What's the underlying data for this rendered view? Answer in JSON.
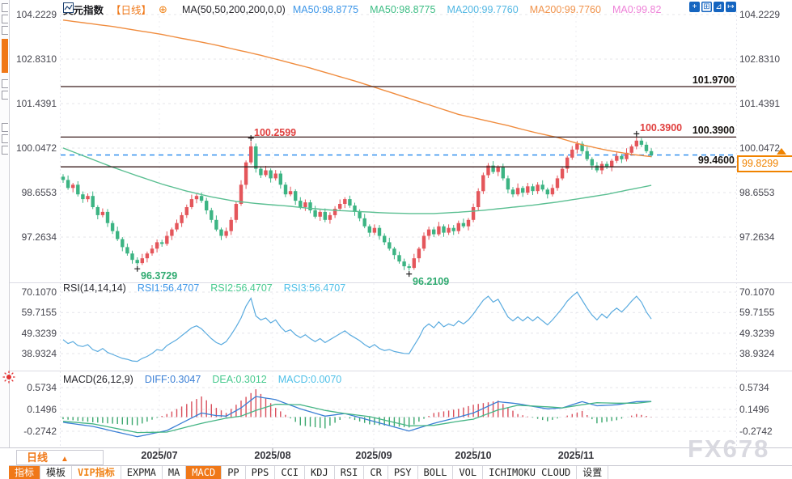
{
  "header": {
    "symbol": "美元指数",
    "period_tag": "【日线】",
    "ma_settings": "MA(50,50,200,200,0,0)",
    "ma_values": [
      {
        "label": "MA50:98.8775",
        "color": "#3d96e8"
      },
      {
        "label": "MA50:98.8775",
        "color": "#3dbd84"
      },
      {
        "label": "MA200:99.7760",
        "color": "#52b7e3"
      },
      {
        "label": "MA200:99.7760",
        "color": "#f0924a"
      },
      {
        "label": "MA0:99.82",
        "color": "#ee82d8"
      }
    ],
    "toolbar_icons": [
      {
        "name": "crosshair-tool-icon",
        "glyph": "+",
        "filled": true
      },
      {
        "name": "axis-range-icon",
        "glyph": "⊞",
        "filled": false
      },
      {
        "name": "chart-scale-icon",
        "glyph": "⊿",
        "filled": true
      },
      {
        "name": "pan-right-icon",
        "glyph": "↦",
        "filled": true
      }
    ]
  },
  "main_chart": {
    "y_axis": {
      "labels": [
        "104.2229",
        "102.8310",
        "101.4391",
        "100.0472",
        "98.6553",
        "97.2634"
      ],
      "values": [
        104.2229,
        102.831,
        101.4391,
        100.0472,
        98.6553,
        97.2634
      ]
    },
    "levels": [
      {
        "label": "101.9700",
        "value": 101.97
      },
      {
        "label": "100.3900",
        "value": 100.39
      },
      {
        "label": "99.4600",
        "value": 99.46
      }
    ],
    "current_price": {
      "label": "99.8299",
      "value": 99.8299
    },
    "annotations": [
      {
        "candle": 38,
        "side": "high",
        "text": "100.2599"
      },
      {
        "candle": 15,
        "side": "low",
        "text": "96.3729"
      },
      {
        "candle": 70,
        "side": "low",
        "text": "96.2109"
      },
      {
        "candle": 116,
        "side": "high",
        "text": "100.3900"
      }
    ]
  },
  "rsi": {
    "title": "RSI(14,14,14)",
    "values": [
      {
        "label": "RSI1:56.4707",
        "color": "#3d96e8"
      },
      {
        "label": "RSI2:56.4707",
        "color": "#45c98d"
      },
      {
        "label": "RSI3:56.4707",
        "color": "#4fc0e8"
      }
    ],
    "axis_labels": [
      "70.1070",
      "59.7155",
      "49.3239",
      "38.9324"
    ],
    "axis_values": [
      70.107,
      59.7155,
      49.3239,
      38.9324
    ]
  },
  "macd": {
    "title": "MACD(26,12,9)",
    "values": [
      {
        "label": "DIFF:0.3047",
        "color": "#3a7fd5"
      },
      {
        "label": "DEA:0.3012",
        "color": "#45c98d"
      },
      {
        "label": "MACD:0.0070",
        "color": "#4fc0e8"
      }
    ],
    "axis_labels": [
      "0.5734",
      "0.1496",
      "-0.2742"
    ],
    "axis_values": [
      0.5734,
      0.1496,
      -0.2742
    ]
  },
  "x_axis": {
    "months": [
      "2025/07",
      "2025/08",
      "2025/09",
      "2025/10",
      "2025/11"
    ],
    "positions": [
      197,
      337,
      462,
      585,
      712
    ]
  },
  "period_selector": {
    "label": "日线",
    "caret": "▲"
  },
  "tabs": [
    {
      "label": "指标",
      "active": true
    },
    {
      "label": "模板"
    },
    {
      "label": "VIP指标",
      "vip": true
    },
    {
      "label": "EXPMA"
    },
    {
      "label": "MA"
    },
    {
      "label": "MACD",
      "active": true
    },
    {
      "label": "PP"
    },
    {
      "label": "PPS"
    },
    {
      "label": "CCI"
    },
    {
      "label": "KDJ"
    },
    {
      "label": "RSI"
    },
    {
      "label": "CR"
    },
    {
      "label": "PSY"
    },
    {
      "label": "BOLL"
    },
    {
      "label": "VOL"
    },
    {
      "label": "ICHIMOKU CLOUD"
    },
    {
      "label": "设置"
    }
  ],
  "watermark": "FX678",
  "colors": {
    "up": "#e4565b",
    "down": "#3cb483",
    "ma50": "#5bbf92",
    "ma200": "#f08c3e",
    "level_line": "#3a1c1c",
    "price_line": "#2288ee",
    "price_tag": "#f08300",
    "rsi_line": "#5aabdf",
    "diff_line": "#3a7fd5",
    "dea_line": "#45b585",
    "hist_up": "#d94f5c",
    "hist_down": "#3aa76d",
    "annotation_up": "#e0403f",
    "annotation_down": "#2faa70",
    "grid": "#e4e4ea",
    "accent": "#f07818"
  },
  "chart_data": {
    "type": "candlestick",
    "title": "美元指数 daily candlestick with MA50/MA200, RSI(14) and MACD(26,12,9) panes",
    "y_range_main": [
      97.2634,
      104.2229
    ],
    "y_range_rsi": [
      38.9324,
      70.107
    ],
    "y_range_macd": [
      -0.2742,
      0.5734
    ],
    "marked_high_1": 100.2599,
    "marked_low_1": 96.3729,
    "marked_low_2": 96.2109,
    "marked_high_2": 100.39,
    "last_close": 99.8299,
    "candles": [
      [
        99.15,
        99.23,
        98.96,
        99.05
      ],
      [
        99.05,
        99.19,
        98.74,
        98.8
      ],
      [
        98.8,
        98.96,
        98.67,
        98.9
      ],
      [
        98.9,
        99.01,
        98.53,
        98.6
      ],
      [
        98.6,
        98.69,
        98.33,
        98.45
      ],
      [
        98.45,
        98.63,
        98.36,
        98.55
      ],
      [
        98.55,
        98.69,
        98.14,
        98.2
      ],
      [
        98.2,
        98.26,
        97.82,
        97.95
      ],
      [
        97.95,
        98.16,
        97.88,
        98.05
      ],
      [
        98.05,
        98.14,
        97.58,
        97.7
      ],
      [
        97.7,
        97.78,
        97.36,
        97.45
      ],
      [
        97.45,
        97.59,
        97.14,
        97.2
      ],
      [
        97.2,
        97.26,
        96.82,
        96.95
      ],
      [
        96.95,
        97.06,
        96.68,
        96.75
      ],
      [
        96.75,
        96.84,
        96.43,
        96.55
      ],
      [
        96.55,
        96.63,
        96.373,
        96.45
      ],
      [
        96.45,
        96.74,
        96.39,
        96.6
      ],
      [
        96.6,
        96.81,
        96.47,
        96.75
      ],
      [
        96.75,
        97.01,
        96.68,
        96.9
      ],
      [
        96.9,
        97.19,
        96.78,
        97.1
      ],
      [
        97.1,
        97.18,
        96.96,
        97.05
      ],
      [
        97.05,
        97.44,
        96.99,
        97.3
      ],
      [
        97.3,
        97.56,
        97.17,
        97.5
      ],
      [
        97.5,
        97.81,
        97.43,
        97.7
      ],
      [
        97.7,
        98.04,
        97.58,
        97.95
      ],
      [
        97.95,
        98.28,
        97.86,
        98.2
      ],
      [
        98.2,
        98.59,
        98.14,
        98.45
      ],
      [
        98.45,
        98.61,
        98.32,
        98.55
      ],
      [
        98.55,
        98.66,
        98.33,
        98.4
      ],
      [
        98.4,
        98.49,
        97.98,
        98.1
      ],
      [
        98.1,
        98.18,
        97.71,
        97.8
      ],
      [
        97.8,
        97.94,
        97.44,
        97.5
      ],
      [
        97.5,
        97.56,
        97.17,
        97.3
      ],
      [
        97.3,
        97.56,
        97.23,
        97.45
      ],
      [
        97.45,
        97.89,
        97.33,
        97.8
      ],
      [
        97.8,
        98.38,
        97.71,
        98.3
      ],
      [
        98.3,
        99.04,
        98.24,
        98.9
      ],
      [
        98.9,
        99.66,
        98.77,
        99.6
      ],
      [
        99.6,
        100.2599,
        99.53,
        100.1
      ],
      [
        100.1,
        100.19,
        99.28,
        99.4
      ],
      [
        99.4,
        99.48,
        99.11,
        99.2
      ],
      [
        99.2,
        99.49,
        99.14,
        99.35
      ],
      [
        99.35,
        99.41,
        98.97,
        99.1
      ],
      [
        99.1,
        99.36,
        99.03,
        99.25
      ],
      [
        99.25,
        99.34,
        98.78,
        98.9
      ],
      [
        98.9,
        98.98,
        98.51,
        98.6
      ],
      [
        98.6,
        98.84,
        98.54,
        98.7
      ],
      [
        98.7,
        98.76,
        98.27,
        98.4
      ],
      [
        98.4,
        98.51,
        98.13,
        98.2
      ],
      [
        98.2,
        98.44,
        98.08,
        98.35
      ],
      [
        98.35,
        98.43,
        98.01,
        98.1
      ],
      [
        98.1,
        98.24,
        97.84,
        97.9
      ],
      [
        97.9,
        98.11,
        97.77,
        98.05
      ],
      [
        98.05,
        98.16,
        97.73,
        97.8
      ],
      [
        97.8,
        98.04,
        97.68,
        97.95
      ],
      [
        97.95,
        98.23,
        97.86,
        98.15
      ],
      [
        98.15,
        98.44,
        98.09,
        98.3
      ],
      [
        98.3,
        98.51,
        98.17,
        98.45
      ],
      [
        98.45,
        98.56,
        98.18,
        98.25
      ],
      [
        98.25,
        98.34,
        97.93,
        98.05
      ],
      [
        98.05,
        98.13,
        97.76,
        97.85
      ],
      [
        97.85,
        97.99,
        97.54,
        97.6
      ],
      [
        97.6,
        97.66,
        97.27,
        97.4
      ],
      [
        97.4,
        97.66,
        97.33,
        97.55
      ],
      [
        97.55,
        97.64,
        97.18,
        97.3
      ],
      [
        97.3,
        97.38,
        97.01,
        97.1
      ],
      [
        97.1,
        97.24,
        96.84,
        96.9
      ],
      [
        96.9,
        96.96,
        96.57,
        96.7
      ],
      [
        96.7,
        96.81,
        96.43,
        96.5
      ],
      [
        96.5,
        96.59,
        96.23,
        96.35
      ],
      [
        96.35,
        96.43,
        96.2109,
        96.3
      ],
      [
        96.3,
        96.74,
        96.24,
        96.6
      ],
      [
        96.6,
        96.96,
        96.47,
        96.9
      ],
      [
        96.9,
        97.41,
        96.83,
        97.3
      ],
      [
        97.3,
        97.59,
        97.18,
        97.5
      ],
      [
        97.5,
        97.58,
        97.26,
        97.35
      ],
      [
        97.35,
        97.74,
        97.29,
        97.6
      ],
      [
        97.6,
        97.66,
        97.27,
        97.4
      ],
      [
        97.4,
        97.66,
        97.33,
        97.55
      ],
      [
        97.55,
        97.64,
        97.33,
        97.45
      ],
      [
        97.45,
        97.78,
        97.36,
        97.7
      ],
      [
        97.7,
        97.84,
        97.54,
        97.6
      ],
      [
        97.6,
        97.86,
        97.47,
        97.8
      ],
      [
        97.8,
        98.31,
        97.73,
        98.2
      ],
      [
        98.2,
        98.79,
        98.08,
        98.7
      ],
      [
        98.7,
        99.28,
        98.61,
        99.2
      ],
      [
        99.2,
        99.58,
        99.11,
        99.5
      ],
      [
        99.5,
        99.64,
        99.24,
        99.3
      ],
      [
        99.3,
        99.51,
        99.17,
        99.45
      ],
      [
        99.45,
        99.56,
        99.03,
        99.1
      ],
      [
        99.1,
        99.19,
        98.63,
        98.75
      ],
      [
        98.75,
        98.83,
        98.51,
        98.6
      ],
      [
        98.6,
        98.94,
        98.54,
        98.8
      ],
      [
        98.8,
        98.86,
        98.52,
        98.65
      ],
      [
        98.65,
        98.96,
        98.58,
        98.85
      ],
      [
        98.85,
        98.93,
        98.58,
        98.7
      ],
      [
        98.7,
        98.98,
        98.61,
        98.9
      ],
      [
        98.9,
        99.04,
        98.69,
        98.75
      ],
      [
        98.75,
        98.81,
        98.47,
        98.6
      ],
      [
        98.6,
        98.91,
        98.53,
        98.8
      ],
      [
        98.8,
        99.19,
        98.71,
        99.1
      ],
      [
        99.1,
        99.48,
        99.04,
        99.4
      ],
      [
        99.4,
        99.81,
        99.27,
        99.75
      ],
      [
        99.75,
        100.11,
        99.68,
        100.0
      ],
      [
        100.0,
        100.27,
        99.88,
        100.18
      ],
      [
        100.18,
        100.26,
        99.86,
        99.95
      ],
      [
        99.95,
        100.09,
        99.64,
        99.7
      ],
      [
        99.7,
        99.76,
        99.37,
        99.5
      ],
      [
        99.5,
        99.61,
        99.28,
        99.35
      ],
      [
        99.35,
        99.64,
        99.23,
        99.55
      ],
      [
        99.55,
        99.63,
        99.39,
        99.45
      ],
      [
        99.45,
        99.71,
        99.32,
        99.65
      ],
      [
        99.65,
        99.91,
        99.58,
        99.8
      ],
      [
        99.8,
        99.86,
        99.58,
        99.7
      ],
      [
        99.7,
        100.04,
        99.63,
        99.9
      ],
      [
        99.9,
        100.16,
        99.81,
        100.1
      ],
      [
        100.1,
        100.39,
        100.01,
        100.28
      ],
      [
        100.28,
        100.36,
        100.08,
        100.15
      ],
      [
        100.15,
        100.24,
        99.89,
        99.95
      ],
      [
        99.95,
        100.04,
        99.76,
        99.83
      ]
    ],
    "ma50_anchors": [
      [
        0,
        100.05
      ],
      [
        5,
        99.75
      ],
      [
        10,
        99.45
      ],
      [
        15,
        99.18
      ],
      [
        20,
        98.92
      ],
      [
        25,
        98.7
      ],
      [
        30,
        98.52
      ],
      [
        35,
        98.38
      ],
      [
        40,
        98.3
      ],
      [
        45,
        98.24
      ],
      [
        50,
        98.16
      ],
      [
        55,
        98.1
      ],
      [
        60,
        98.06
      ],
      [
        65,
        98.02
      ],
      [
        70,
        98.0
      ],
      [
        75,
        98.0
      ],
      [
        80,
        98.04
      ],
      [
        85,
        98.1
      ],
      [
        90,
        98.18
      ],
      [
        95,
        98.26
      ],
      [
        100,
        98.36
      ],
      [
        105,
        98.48
      ],
      [
        110,
        98.6
      ],
      [
        115,
        98.76
      ],
      [
        119,
        98.88
      ]
    ],
    "ma200_anchors": [
      [
        0,
        104.05
      ],
      [
        10,
        103.85
      ],
      [
        20,
        103.6
      ],
      [
        30,
        103.3
      ],
      [
        40,
        102.95
      ],
      [
        50,
        102.55
      ],
      [
        60,
        102.1
      ],
      [
        70,
        101.6
      ],
      [
        80,
        101.1
      ],
      [
        90,
        100.75
      ],
      [
        95,
        100.55
      ],
      [
        100,
        100.38
      ],
      [
        105,
        100.15
      ],
      [
        110,
        99.98
      ],
      [
        115,
        99.85
      ],
      [
        119,
        99.78
      ]
    ],
    "rsi_series": [
      46,
      44,
      45,
      43,
      42.5,
      43.5,
      41,
      40,
      41.5,
      39.5,
      38.5,
      37.5,
      36.5,
      36,
      35.2,
      35,
      36.5,
      37.5,
      39,
      41,
      40.5,
      43,
      44.5,
      46,
      48,
      50,
      52,
      53,
      51.5,
      49,
      46.5,
      44.5,
      43.5,
      45,
      48.5,
      52.5,
      57,
      63,
      67,
      58,
      56,
      57,
      54.5,
      56,
      52.5,
      50,
      51,
      48.5,
      47,
      48.5,
      46.5,
      45,
      46.5,
      44.5,
      46,
      47.5,
      49,
      50.5,
      48.5,
      47,
      45.5,
      43.5,
      42,
      43.5,
      41.5,
      40.5,
      41,
      40,
      39.5,
      39,
      38.9,
      43,
      47,
      52,
      54,
      52,
      55,
      52.5,
      54,
      53,
      55.5,
      54,
      56,
      59,
      62.5,
      66,
      68,
      65,
      66.5,
      62,
      57.5,
      55.5,
      57.5,
      55.5,
      57.5,
      55.5,
      57.5,
      55.5,
      53.5,
      56,
      59,
      62,
      65.5,
      68,
      70.1,
      66,
      62,
      58.5,
      56,
      59,
      57,
      60,
      62,
      60,
      62.5,
      65.5,
      68,
      65,
      60,
      56.5
    ],
    "diff_anchors": [
      [
        0,
        -0.1
      ],
      [
        6,
        -0.18
      ],
      [
        15,
        -0.38
      ],
      [
        21,
        -0.26
      ],
      [
        28,
        0.08
      ],
      [
        31,
        0.03
      ],
      [
        33,
        0.02
      ],
      [
        36,
        0.18
      ],
      [
        39,
        0.4
      ],
      [
        43,
        0.34
      ],
      [
        48,
        0.16
      ],
      [
        53,
        0.02
      ],
      [
        57,
        0.07
      ],
      [
        62,
        -0.06
      ],
      [
        70,
        -0.27
      ],
      [
        75,
        -0.12
      ],
      [
        80,
        0.0
      ],
      [
        83,
        0.08
      ],
      [
        88,
        0.3
      ],
      [
        92,
        0.26
      ],
      [
        98,
        0.16
      ],
      [
        101,
        0.18
      ],
      [
        105,
        0.3
      ],
      [
        108,
        0.22
      ],
      [
        112,
        0.24
      ],
      [
        116,
        0.3
      ],
      [
        119,
        0.3047
      ]
    ],
    "dea_anchors": [
      [
        0,
        -0.08
      ],
      [
        6,
        -0.13
      ],
      [
        15,
        -0.3
      ],
      [
        21,
        -0.29
      ],
      [
        28,
        -0.12
      ],
      [
        31,
        -0.06
      ],
      [
        33,
        -0.02
      ],
      [
        36,
        0.02
      ],
      [
        39,
        0.13
      ],
      [
        43,
        0.25
      ],
      [
        48,
        0.24
      ],
      [
        53,
        0.13
      ],
      [
        57,
        0.07
      ],
      [
        62,
        0.01
      ],
      [
        70,
        -0.17
      ],
      [
        75,
        -0.16
      ],
      [
        80,
        -0.08
      ],
      [
        83,
        -0.04
      ],
      [
        88,
        0.14
      ],
      [
        92,
        0.23
      ],
      [
        98,
        0.2
      ],
      [
        101,
        0.18
      ],
      [
        105,
        0.24
      ],
      [
        108,
        0.28
      ],
      [
        112,
        0.27
      ],
      [
        116,
        0.27
      ],
      [
        119,
        0.3012
      ]
    ]
  },
  "sidebar_tools": [
    "draw-tool-1",
    "draw-tool-2",
    "draw-tool-3",
    "active-tool",
    "measure-tool",
    "text-tool",
    "shape-tool-1",
    "shape-tool-2",
    "shape-tool-3"
  ]
}
